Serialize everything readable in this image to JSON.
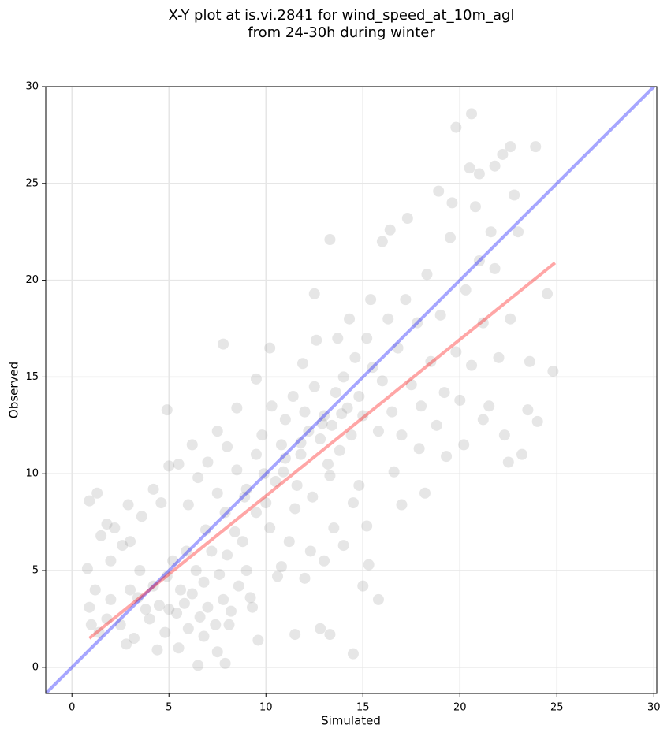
{
  "chart_data": {
    "type": "scatter",
    "title": [
      "X-Y plot at is.vi.2841 for wind_speed_at_10m_agl",
      "from 24-30h during winter"
    ],
    "x_label": "Simulated",
    "y_label": "Observed",
    "xlim": [
      -1.35,
      30.15
    ],
    "ylim": [
      -1.35,
      30
    ],
    "xticks": [
      0,
      5,
      10,
      15,
      20,
      25,
      30
    ],
    "yticks": [
      0,
      5,
      10,
      15,
      20,
      25,
      30
    ],
    "grid": true,
    "color": "#808080",
    "x": [
      20.6,
      19.8,
      23.9,
      22.6,
      13.3,
      7.8,
      4.9,
      24.8,
      24.5,
      18.2,
      17.0,
      15.8,
      13.3,
      11.5,
      12.8,
      14.5,
      6.5,
      7.9,
      0.9,
      1.3,
      0.8,
      10.2,
      12.5,
      16.0,
      20.5,
      21.0,
      21.8,
      22.2,
      2,
      2.5,
      3,
      3.2,
      3.5,
      3.8,
      4,
      4.2,
      4.5,
      4.8,
      5,
      5.2,
      5.4,
      5.6,
      5.8,
      6,
      6.2,
      6.4,
      6.6,
      6.8,
      7,
      7.2,
      7.4,
      7.6,
      7.8,
      8,
      8.2,
      8.4,
      8.6,
      8.8,
      9,
      9.2,
      9.5,
      3,
      2.2,
      1.5,
      1.2,
      1.8,
      2.8,
      4.4,
      5.5,
      6.8,
      7.5,
      3.6,
      4.2,
      5,
      5.5,
      6,
      6.5,
      7,
      7.5,
      8,
      8.5,
      9,
      9.5,
      10,
      10.2,
      10.5,
      11,
      11.2,
      11.5,
      10.8,
      12,
      12.3,
      13,
      13.5,
      14,
      14.5,
      15,
      15.3,
      14.8,
      15.2,
      9.8,
      10.3,
      10.8,
      11,
      11.4,
      11.8,
      12,
      12.2,
      12.5,
      12.8,
      13,
      13.2,
      13.4,
      13.6,
      13.8,
      14,
      14.2,
      14.4,
      14.6,
      14.8,
      15,
      15.2,
      15.5,
      15.8,
      16,
      16.3,
      16.5,
      16.8,
      17,
      17.2,
      17.5,
      17.8,
      18,
      18.3,
      18.5,
      18.8,
      19,
      19.2,
      19.5,
      19.8,
      20,
      20.3,
      20.6,
      21,
      21.2,
      21.5,
      21.8,
      22,
      22.3,
      22.6,
      23,
      23.2,
      23.6,
      24,
      23.5,
      22.8,
      21.6,
      20.8,
      19.6,
      18.9,
      17.3,
      16.4,
      15.4,
      14.3,
      13.7,
      12.6,
      11.9,
      11.6,
      12.4,
      13.3,
      16.6,
      17.9,
      19.3,
      20.2,
      21.2,
      22.5,
      8.5,
      9.5,
      7.5,
      6.2,
      4.6,
      2.9,
      1.8,
      2,
      2.6,
      3.4,
      4.9,
      5.9,
      6.9,
      7.9,
      8.9,
      9.9,
      10.9,
      11.8,
      12.9,
      13.9,
      8.1,
      9.3,
      9.6,
      10.6,
      1,
      1.4,
      0.9
    ],
    "y": [
      28.6,
      27.9,
      26.9,
      26.9,
      22.1,
      16.7,
      13.3,
      15.3,
      19.3,
      9.0,
      8.4,
      3.5,
      1.7,
      1.7,
      2.0,
      0.7,
      0.1,
      0.2,
      8.6,
      9.0,
      5.1,
      16.5,
      19.3,
      22.0,
      25.8,
      25.5,
      25.9,
      26.5,
      3.5,
      2.2,
      4,
      1.5,
      5,
      3,
      2.5,
      4.2,
      3.2,
      1.8,
      3,
      5.5,
      2.8,
      4,
      3.3,
      2,
      3.8,
      5,
      2.6,
      4.4,
      3.1,
      6,
      2.2,
      4.8,
      3.5,
      5.8,
      2.9,
      7,
      4.2,
      6.5,
      5,
      3.6,
      8,
      6.5,
      7.2,
      6.8,
      4,
      2.5,
      1.2,
      0.9,
      1,
      1.6,
      0.8,
      7.8,
      9.2,
      10.4,
      10.5,
      8.4,
      9.8,
      10.6,
      9,
      11.4,
      10.2,
      9.2,
      11,
      8.5,
      7.2,
      9.6,
      10.8,
      6.5,
      8.2,
      5.2,
      4.6,
      6,
      5.5,
      7.2,
      6.3,
      8.5,
      4.2,
      5.3,
      9.4,
      7.3,
      12,
      13.5,
      11.5,
      12.8,
      14,
      11,
      13.2,
      12.2,
      14.5,
      11.8,
      13,
      10.5,
      12.5,
      14.2,
      11.2,
      15,
      13.4,
      12,
      16,
      14,
      13,
      17,
      15.5,
      12.2,
      14.8,
      18,
      13.2,
      16.5,
      12,
      19,
      14.6,
      17.8,
      13.5,
      20.3,
      15.8,
      12.5,
      18.2,
      14.2,
      22.2,
      16.3,
      13.8,
      19.5,
      15.6,
      21,
      17.8,
      13.5,
      20.6,
      16,
      12,
      18,
      22.5,
      11,
      15.8,
      12.7,
      13.3,
      24.4,
      22.5,
      23.8,
      24,
      24.6,
      23.2,
      22.6,
      19,
      18,
      17,
      16.9,
      15.7,
      9.4,
      8.8,
      9.9,
      10.1,
      11.3,
      10.9,
      11.5,
      12.8,
      10.6,
      13.4,
      14.9,
      12.2,
      11.5,
      8.5,
      8.4,
      7.4,
      5.5,
      6.3,
      3.6,
      4.7,
      6,
      7.1,
      8,
      8.8,
      10,
      10.1,
      11.6,
      12.6,
      13.1,
      2.2,
      3.1,
      1.4,
      4.7,
      2.2,
      1.8,
      3.1
    ],
    "lines": [
      {
        "color": "#0000ff",
        "x": [
          -1.35,
          30.15
        ],
        "y": [
          -1.35,
          30.15
        ]
      },
      {
        "color": "#ff0000",
        "x": [
          0.9,
          24.9
        ],
        "y": [
          1.5,
          20.9
        ]
      }
    ]
  }
}
